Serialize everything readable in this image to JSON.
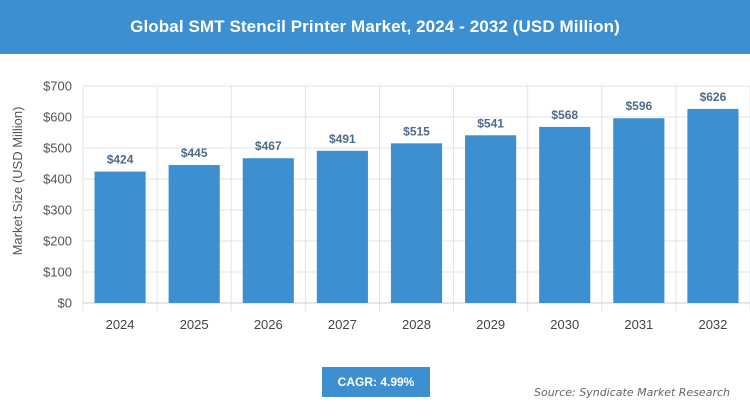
{
  "header": {
    "title": "Global SMT Stencil Printer Market, 2024 - 2032 (USD Million)"
  },
  "chart_data": {
    "type": "bar",
    "categories": [
      "2024",
      "2025",
      "2026",
      "2027",
      "2028",
      "2029",
      "2030",
      "2031",
      "2032"
    ],
    "values": [
      424,
      445,
      467,
      491,
      515,
      541,
      568,
      596,
      626
    ],
    "value_labels": [
      "$424",
      "$445",
      "$467",
      "$491",
      "$515",
      "$541",
      "$568",
      "$596",
      "$626"
    ],
    "ylabel": "Market Size (USD Million)",
    "xlabel": "",
    "ylim": [
      0,
      700
    ],
    "yticks": [
      0,
      100,
      200,
      300,
      400,
      500,
      600,
      700
    ],
    "ytick_labels": [
      "$0",
      "$100",
      "$200",
      "$300",
      "$400",
      "$500",
      "$600",
      "$700"
    ],
    "grid": true,
    "bar_color": "#3d8fcf"
  },
  "footer": {
    "cagr_label": "CAGR: 4.99%",
    "source": "Source: Syndicate Market Research"
  },
  "colors": {
    "accent": "#3c8fd1",
    "bar": "#3d8fcf",
    "value_label": "#4f6b8a",
    "grid": "#e3e3e3"
  }
}
